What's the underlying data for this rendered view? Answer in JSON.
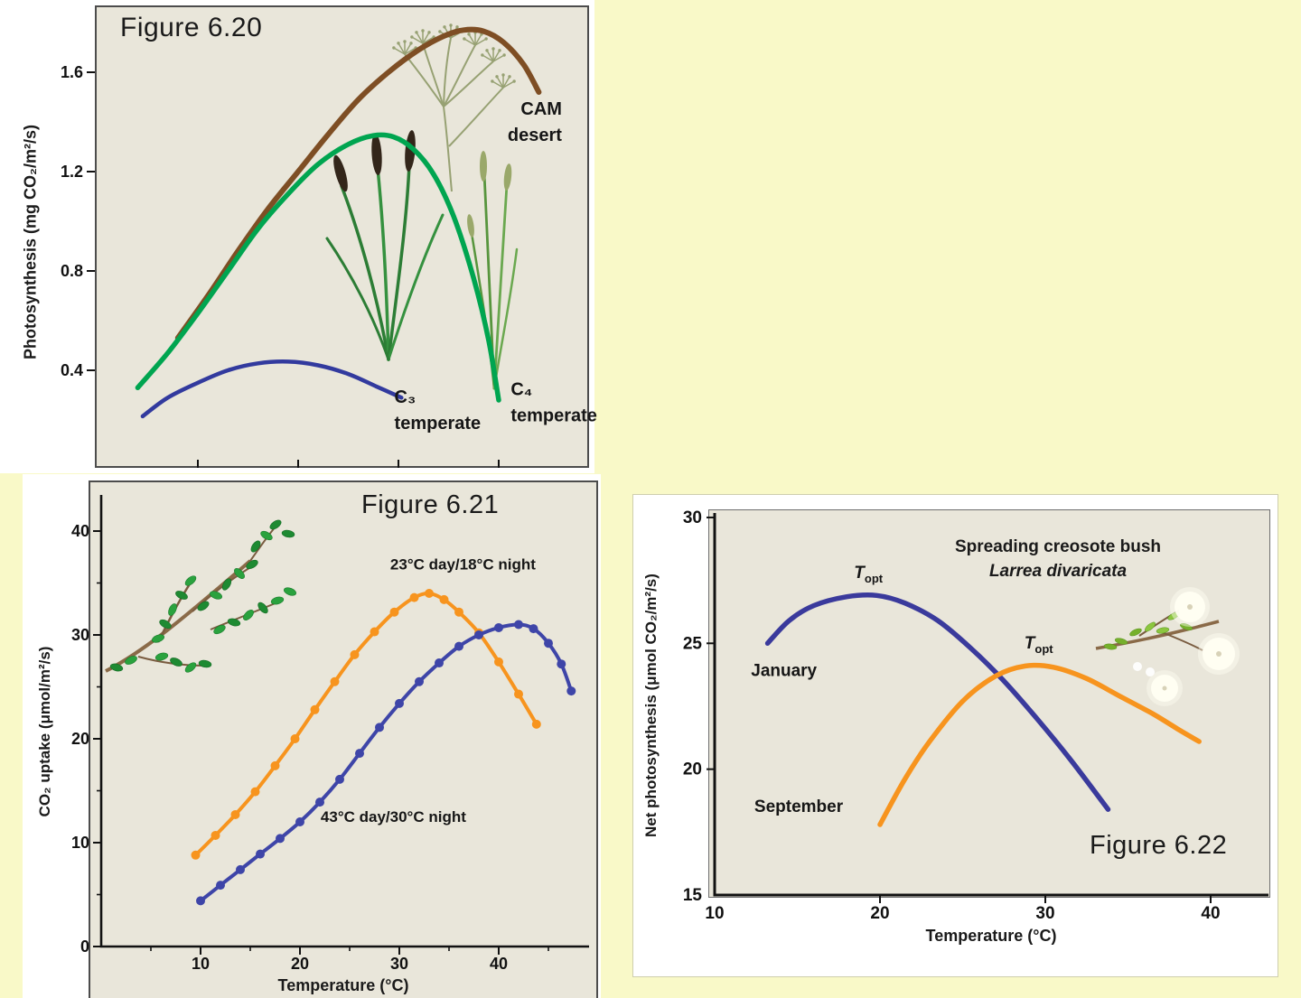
{
  "page": {
    "background": "#f9f9c8"
  },
  "colors": {
    "page_bg": "#f9f9c8",
    "panel_bg": "#ffffff",
    "plot_bg": "#e9e6da",
    "axis": "#111111",
    "text": "#1a1a1a",
    "cam_brown": "#7e4e24",
    "c4_green": "#00a550",
    "c3_blue": "#323a9e",
    "orange": "#f7941e",
    "indigo": "#3e45a8"
  },
  "chart_data": [
    {
      "type": "line",
      "figure_label": "Figure 6.20",
      "ylabel": "Photosynthesis (mg CO₂/m²/s)",
      "xlabel": "",
      "xlim": [
        0,
        49
      ],
      "ylim": [
        0,
        1.84
      ],
      "yticks": [
        0.4,
        0.8,
        1.2,
        1.6
      ],
      "xticks": [
        10,
        20,
        30,
        40
      ],
      "grid": false,
      "legend": "labels on plot",
      "illustrations": [
        "cam-plant-illustration",
        "c4-grass-illustration",
        "c4-grass-tall-illustration"
      ],
      "series": [
        {
          "name": "CAM desert",
          "color": "#7e4e24",
          "width": 6,
          "points": [
            [
              8,
              0.53
            ],
            [
              11,
              0.7
            ],
            [
              14,
              0.88
            ],
            [
              17,
              1.05
            ],
            [
              20,
              1.2
            ],
            [
              23,
              1.35
            ],
            [
              26,
              1.49
            ],
            [
              29,
              1.6
            ],
            [
              32,
              1.69
            ],
            [
              34.5,
              1.745
            ],
            [
              36.5,
              1.77
            ],
            [
              38.5,
              1.765
            ],
            [
              40.5,
              1.72
            ],
            [
              42.5,
              1.63
            ],
            [
              44,
              1.52
            ]
          ]
        },
        {
          "name": "C₄ temperate",
          "color": "#00a550",
          "width": 5.5,
          "points": [
            [
              4,
              0.33
            ],
            [
              7,
              0.47
            ],
            [
              10,
              0.63
            ],
            [
              13,
              0.8
            ],
            [
              16,
              0.97
            ],
            [
              19,
              1.11
            ],
            [
              22,
              1.23
            ],
            [
              25,
              1.31
            ],
            [
              27.5,
              1.345
            ],
            [
              29.5,
              1.34
            ],
            [
              31.5,
              1.29
            ],
            [
              33.5,
              1.19
            ],
            [
              35.5,
              1.02
            ],
            [
              37.5,
              0.77
            ],
            [
              39,
              0.52
            ],
            [
              40,
              0.28
            ]
          ]
        },
        {
          "name": "C₃ temperate",
          "color": "#323a9e",
          "width": 4.5,
          "points": [
            [
              4.5,
              0.215
            ],
            [
              7,
              0.29
            ],
            [
              10,
              0.35
            ],
            [
              13,
              0.4
            ],
            [
              16,
              0.428
            ],
            [
              19,
              0.435
            ],
            [
              22,
              0.42
            ],
            [
              25,
              0.385
            ],
            [
              27.8,
              0.335
            ],
            [
              30.3,
              0.29
            ]
          ]
        }
      ],
      "annotations": [
        {
          "lines": [
            "CAM",
            "desert"
          ],
          "x": 46.3,
          "y": 1.43,
          "align": "end"
        },
        {
          "lines": [
            "C₃",
            "temperate"
          ],
          "x": 29.6,
          "y": 0.27,
          "align": "start"
        },
        {
          "lines": [
            "C₄",
            "temperate"
          ],
          "x": 41.2,
          "y": 0.3,
          "align": "start"
        }
      ]
    },
    {
      "type": "scatter-line",
      "figure_label": "Figure 6.21",
      "ylabel": "CO₂ uptake (μmol/m²/s)",
      "xlabel": "Temperature (°C)",
      "xlim": [
        0,
        49
      ],
      "ylim": [
        0,
        41.7
      ],
      "yticks": [
        0,
        10,
        20,
        30,
        40
      ],
      "xticks": [
        10,
        20,
        30,
        40
      ],
      "grid": false,
      "legend": "labels on plot",
      "illustrations": [
        "creosote-branch-illustration"
      ],
      "series": [
        {
          "name": "23°C day/18°C night",
          "color": "#f7941e",
          "width": 4,
          "markers": true,
          "points": [
            [
              9.5,
              8.8
            ],
            [
              11.5,
              10.7
            ],
            [
              13.5,
              12.7
            ],
            [
              15.5,
              14.9
            ],
            [
              17.5,
              17.4
            ],
            [
              19.5,
              20.0
            ],
            [
              21.5,
              22.8
            ],
            [
              23.5,
              25.5
            ],
            [
              25.5,
              28.1
            ],
            [
              27.5,
              30.3
            ],
            [
              29.5,
              32.2
            ],
            [
              31.5,
              33.6
            ],
            [
              33,
              34.0
            ],
            [
              34.5,
              33.4
            ],
            [
              36,
              32.2
            ],
            [
              38,
              30.2
            ],
            [
              40,
              27.4
            ],
            [
              42,
              24.3
            ],
            [
              43.8,
              21.4
            ]
          ]
        },
        {
          "name": "43°C day/30°C night",
          "color": "#3e45a8",
          "width": 4,
          "markers": true,
          "points": [
            [
              10,
              4.4
            ],
            [
              12,
              5.9
            ],
            [
              14,
              7.4
            ],
            [
              16,
              8.9
            ],
            [
              18,
              10.4
            ],
            [
              20,
              12.0
            ],
            [
              22,
              13.9
            ],
            [
              24,
              16.1
            ],
            [
              26,
              18.6
            ],
            [
              28,
              21.1
            ],
            [
              30,
              23.4
            ],
            [
              32,
              25.5
            ],
            [
              34,
              27.3
            ],
            [
              36,
              28.9
            ],
            [
              38,
              30.0
            ],
            [
              40,
              30.7
            ],
            [
              42,
              31.0
            ],
            [
              43.5,
              30.6
            ],
            [
              45,
              29.2
            ],
            [
              46.3,
              27.2
            ],
            [
              47.3,
              24.6
            ]
          ]
        }
      ],
      "annotations": [
        {
          "lines": [
            "23°C day/18°C night"
          ],
          "x": 36.4,
          "y": 36.3,
          "align": "middle"
        },
        {
          "lines": [
            "43°C day/30°C night"
          ],
          "x": 29.4,
          "y": 12.0,
          "align": "middle"
        }
      ]
    },
    {
      "type": "line",
      "figure_label": "Figure 6.22",
      "title": "Spreading creosote bush",
      "subtitle": "Larrea divaricata",
      "ylabel": "Net photosynthesis (μmol CO₂/m²/s)",
      "xlabel": "Temperature (°C)",
      "xlim": [
        10,
        43.5
      ],
      "ylim": [
        15,
        30
      ],
      "yticks": [
        15,
        20,
        25,
        30
      ],
      "xticks": [
        10,
        20,
        30,
        40
      ],
      "grid": false,
      "legend": "labels on plot",
      "illustrations": [
        "creosote-flower-illustration"
      ],
      "series": [
        {
          "name": "January",
          "color": "#3a3a9c",
          "width": 5.5,
          "points": [
            [
              13.2,
              25.0
            ],
            [
              14.5,
              25.9
            ],
            [
              16,
              26.5
            ],
            [
              18,
              26.85
            ],
            [
              19.8,
              26.9
            ],
            [
              21.5,
              26.6
            ],
            [
              23.5,
              25.9
            ],
            [
              25.5,
              24.8
            ],
            [
              27.5,
              23.5
            ],
            [
              29.5,
              22.0
            ],
            [
              31.5,
              20.4
            ],
            [
              33.8,
              18.4
            ]
          ]
        },
        {
          "name": "September",
          "color": "#f7941e",
          "width": 5.5,
          "points": [
            [
              20,
              17.8
            ],
            [
              21.5,
              19.6
            ],
            [
              23,
              21.1
            ],
            [
              25,
              22.7
            ],
            [
              27,
              23.7
            ],
            [
              28.8,
              24.1
            ],
            [
              30.5,
              24.05
            ],
            [
              32.5,
              23.6
            ],
            [
              34.5,
              22.9
            ],
            [
              36.5,
              22.2
            ],
            [
              38,
              21.6
            ],
            [
              39.3,
              21.1
            ]
          ]
        }
      ],
      "annotations": [
        {
          "lines": [
            "January"
          ],
          "x": 12.2,
          "y": 23.7,
          "align": "start"
        },
        {
          "lines": [
            "September"
          ],
          "x": 12.4,
          "y": 18.3,
          "align": "start"
        },
        {
          "text": "T",
          "sub": "opt",
          "italic": true,
          "x": 19.3,
          "y": 27.6,
          "align": "middle"
        },
        {
          "text": "T",
          "sub": "opt",
          "italic": true,
          "x": 29.6,
          "y": 24.8,
          "align": "middle"
        }
      ]
    }
  ]
}
